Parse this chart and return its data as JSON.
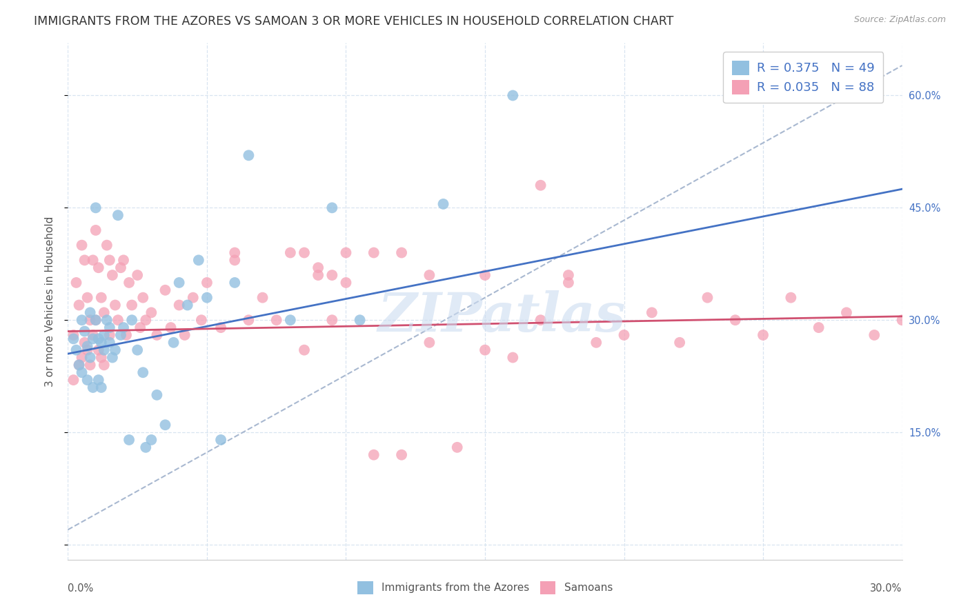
{
  "title": "IMMIGRANTS FROM THE AZORES VS SAMOAN 3 OR MORE VEHICLES IN HOUSEHOLD CORRELATION CHART",
  "source": "Source: ZipAtlas.com",
  "ylabel_label": "3 or more Vehicles in Household",
  "yticks": [
    0.0,
    0.15,
    0.3,
    0.45,
    0.6
  ],
  "ytick_labels": [
    "",
    "15.0%",
    "30.0%",
    "45.0%",
    "60.0%"
  ],
  "xlim": [
    0.0,
    0.3
  ],
  "ylim": [
    -0.02,
    0.67
  ],
  "color_blue": "#92c0e0",
  "color_pink": "#f4a0b5",
  "color_line_blue": "#4472c4",
  "color_line_pink": "#d05070",
  "color_trend_gray": "#a8b8d0",
  "background_color": "#ffffff",
  "grid_color": "#d8e4f0",
  "watermark": "ZIPatlas",
  "title_fontsize": 12.5,
  "axis_label_fontsize": 11,
  "tick_fontsize": 10.5,
  "legend_fontsize": 13,
  "az_line_x0": 0.0,
  "az_line_y0": 0.255,
  "az_line_x1": 0.3,
  "az_line_y1": 0.475,
  "sa_line_x0": 0.0,
  "sa_line_y0": 0.285,
  "sa_line_x1": 0.3,
  "sa_line_y1": 0.305,
  "gray_line_x0": 0.0,
  "gray_line_y0": 0.02,
  "gray_line_x1": 0.3,
  "gray_line_y1": 0.64,
  "azores_x": [
    0.002,
    0.003,
    0.004,
    0.005,
    0.005,
    0.006,
    0.007,
    0.007,
    0.008,
    0.008,
    0.009,
    0.009,
    0.01,
    0.01,
    0.011,
    0.011,
    0.012,
    0.012,
    0.013,
    0.013,
    0.014,
    0.015,
    0.015,
    0.016,
    0.017,
    0.018,
    0.019,
    0.02,
    0.022,
    0.023,
    0.025,
    0.027,
    0.028,
    0.03,
    0.032,
    0.035,
    0.038,
    0.04,
    0.043,
    0.047,
    0.05,
    0.055,
    0.06,
    0.065,
    0.08,
    0.095,
    0.105,
    0.135,
    0.16
  ],
  "azores_y": [
    0.275,
    0.26,
    0.24,
    0.3,
    0.23,
    0.285,
    0.265,
    0.22,
    0.31,
    0.25,
    0.275,
    0.21,
    0.45,
    0.3,
    0.275,
    0.22,
    0.27,
    0.21,
    0.28,
    0.26,
    0.3,
    0.29,
    0.27,
    0.25,
    0.26,
    0.44,
    0.28,
    0.29,
    0.14,
    0.3,
    0.26,
    0.23,
    0.13,
    0.14,
    0.2,
    0.16,
    0.27,
    0.35,
    0.32,
    0.38,
    0.33,
    0.14,
    0.35,
    0.52,
    0.3,
    0.45,
    0.3,
    0.455,
    0.6
  ],
  "samoan_x": [
    0.002,
    0.002,
    0.003,
    0.004,
    0.004,
    0.005,
    0.005,
    0.006,
    0.006,
    0.007,
    0.007,
    0.008,
    0.008,
    0.009,
    0.009,
    0.01,
    0.01,
    0.011,
    0.011,
    0.012,
    0.012,
    0.013,
    0.013,
    0.014,
    0.015,
    0.015,
    0.016,
    0.017,
    0.018,
    0.019,
    0.02,
    0.021,
    0.022,
    0.023,
    0.025,
    0.026,
    0.027,
    0.028,
    0.03,
    0.032,
    0.035,
    0.037,
    0.04,
    0.042,
    0.045,
    0.048,
    0.05,
    0.055,
    0.06,
    0.065,
    0.07,
    0.075,
    0.08,
    0.085,
    0.09,
    0.095,
    0.1,
    0.11,
    0.12,
    0.13,
    0.14,
    0.15,
    0.16,
    0.17,
    0.18,
    0.19,
    0.2,
    0.21,
    0.22,
    0.23,
    0.24,
    0.25,
    0.26,
    0.27,
    0.28,
    0.29,
    0.3,
    0.17,
    0.18,
    0.06,
    0.09,
    0.11,
    0.095,
    0.085,
    0.15,
    0.12,
    0.13,
    0.1
  ],
  "samoan_y": [
    0.28,
    0.22,
    0.35,
    0.32,
    0.24,
    0.4,
    0.25,
    0.38,
    0.27,
    0.33,
    0.26,
    0.3,
    0.24,
    0.38,
    0.28,
    0.42,
    0.3,
    0.37,
    0.26,
    0.33,
    0.25,
    0.31,
    0.24,
    0.4,
    0.38,
    0.28,
    0.36,
    0.32,
    0.3,
    0.37,
    0.38,
    0.28,
    0.35,
    0.32,
    0.36,
    0.29,
    0.33,
    0.3,
    0.31,
    0.28,
    0.34,
    0.29,
    0.32,
    0.28,
    0.33,
    0.3,
    0.35,
    0.29,
    0.38,
    0.3,
    0.33,
    0.3,
    0.39,
    0.26,
    0.37,
    0.3,
    0.35,
    0.12,
    0.12,
    0.27,
    0.13,
    0.26,
    0.25,
    0.3,
    0.35,
    0.27,
    0.28,
    0.31,
    0.27,
    0.33,
    0.3,
    0.28,
    0.33,
    0.29,
    0.31,
    0.28,
    0.3,
    0.48,
    0.36,
    0.39,
    0.36,
    0.39,
    0.36,
    0.39,
    0.36,
    0.39,
    0.36,
    0.39
  ]
}
